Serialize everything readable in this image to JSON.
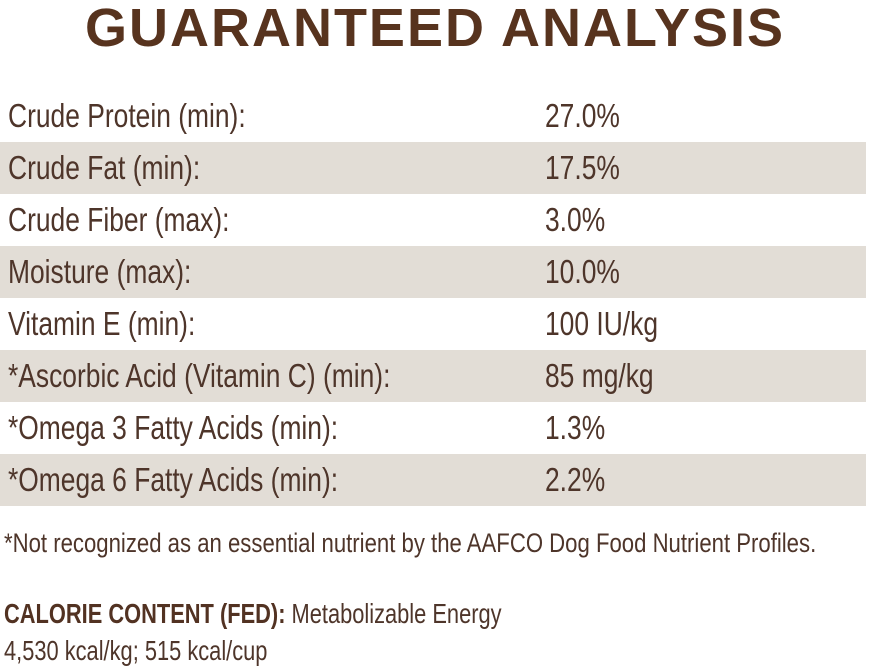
{
  "title": "GUARANTEED ANALYSIS",
  "colors": {
    "title_brown": "#57331e",
    "text_brown": "#4e352a",
    "row_shade_beige": "#e2ddd6",
    "background": "#ffffff"
  },
  "analysis_table": {
    "rows": [
      {
        "label": "Crude Protein (min):",
        "value": "27.0%"
      },
      {
        "label": "Crude Fat (min):",
        "value": "17.5%"
      },
      {
        "label": "Crude Fiber (max):",
        "value": "3.0%"
      },
      {
        "label": "Moisture (max):",
        "value": "10.0%"
      },
      {
        "label": "Vitamin E (min):",
        "value": "100 IU/kg"
      },
      {
        "label": "*Ascorbic Acid (Vitamin C) (min):",
        "value": "85 mg/kg"
      },
      {
        "label": "*Omega 3 Fatty Acids (min):",
        "value": "1.3%"
      },
      {
        "label": "*Omega 6 Fatty Acids (min):",
        "value": "2.2%"
      }
    ]
  },
  "footnote": "*Not recognized as an essential nutrient by the AAFCO Dog Food Nutrient Profiles.",
  "calorie_content": {
    "heading": "CALORIE CONTENT (FED):",
    "description": "Metabolizable Energy",
    "values": "4,530 kcal/kg; 515 kcal/cup"
  }
}
